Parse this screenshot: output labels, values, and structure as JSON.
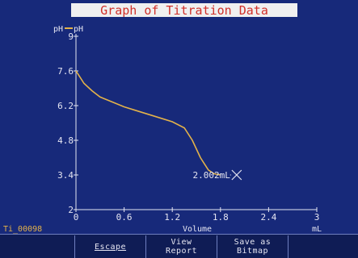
{
  "chart_data": {
    "type": "line",
    "title": "Graph of Titration Data",
    "ylabel": "pH",
    "legend_label": "pH",
    "xlabel": "Volume",
    "xunit": "mL",
    "xlim": [
      0,
      3
    ],
    "ylim": [
      2,
      9
    ],
    "xticks": [
      0,
      0.6,
      1.2,
      1.8,
      2.4,
      3
    ],
    "xtick_labels": [
      "0",
      "0.6",
      "1.2",
      "1.8",
      "2.4",
      "3"
    ],
    "yticks": [
      2,
      3.4,
      4.8,
      6.2,
      7.6,
      9
    ],
    "ytick_labels": [
      "2",
      "3.4",
      "4.8",
      "6.2",
      "7.6",
      "9"
    ],
    "series": [
      {
        "name": "pH",
        "x": [
          0,
          0.05,
          0.1,
          0.2,
          0.3,
          0.45,
          0.6,
          0.8,
          1.0,
          1.2,
          1.35,
          1.45,
          1.55,
          1.6,
          1.65,
          1.72,
          1.8
        ],
        "y": [
          7.6,
          7.35,
          7.1,
          6.8,
          6.55,
          6.35,
          6.15,
          5.95,
          5.75,
          5.55,
          5.3,
          4.8,
          4.1,
          3.85,
          3.6,
          3.45,
          3.4
        ]
      }
    ],
    "cursor": {
      "x": 2.002,
      "y": 3.4,
      "label": "2.002mL"
    },
    "colors": {
      "background": "#17297a",
      "axis": "#e6e6f2",
      "line": "#e3b24a",
      "title_bg": "#f0f0f0",
      "title_fg": "#d0302a",
      "cursor": "#e6e6f2"
    }
  },
  "status": {
    "filename": "Ti_00098",
    "filename_color": "#e3b24a"
  },
  "softkeys": [
    {
      "label": ""
    },
    {
      "label": "Escape"
    },
    {
      "label": "View Report",
      "line1": "View",
      "line2": "Report"
    },
    {
      "label": "Save as Bitmap",
      "line1": "Save as",
      "line2": "Bitmap"
    },
    {
      "label": ""
    }
  ]
}
